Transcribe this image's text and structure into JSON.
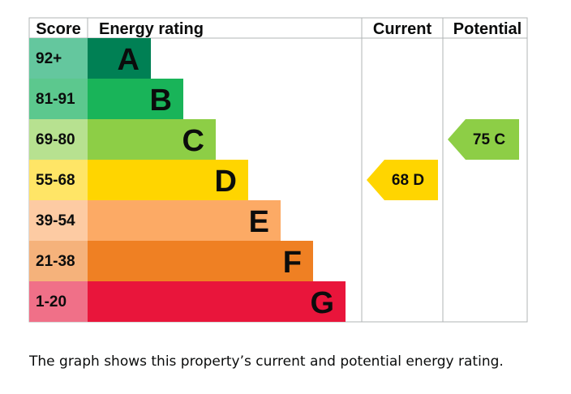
{
  "chart_data": {
    "type": "bar",
    "headers": {
      "score": "Score",
      "rating": "Energy rating",
      "current": "Current",
      "potential": "Potential"
    },
    "bands": [
      {
        "letter": "A",
        "score_range": "92+",
        "color": "#008054",
        "score_color": "#64c79e"
      },
      {
        "letter": "B",
        "score_range": "81-91",
        "color": "#19b459",
        "score_color": "#5cc88e"
      },
      {
        "letter": "C",
        "score_range": "69-80",
        "color": "#8dce46",
        "score_color": "#b7e190"
      },
      {
        "letter": "D",
        "score_range": "55-68",
        "color": "#ffd500",
        "score_color": "#ffe566"
      },
      {
        "letter": "E",
        "score_range": "39-54",
        "color": "#fcaa65",
        "score_color": "#fdcba3"
      },
      {
        "letter": "F",
        "score_range": "21-38",
        "color": "#ef8023",
        "score_color": "#f5b27b"
      },
      {
        "letter": "G",
        "score_range": "1-20",
        "color": "#e9153b",
        "score_color": "#f07088"
      }
    ],
    "current": {
      "value": 68,
      "letter": "D",
      "label": "68 D",
      "color": "#ffd500"
    },
    "potential": {
      "value": 75,
      "letter": "C",
      "label": "75 C",
      "color": "#8dce46"
    }
  },
  "caption": "The graph shows this property’s current and potential energy rating."
}
